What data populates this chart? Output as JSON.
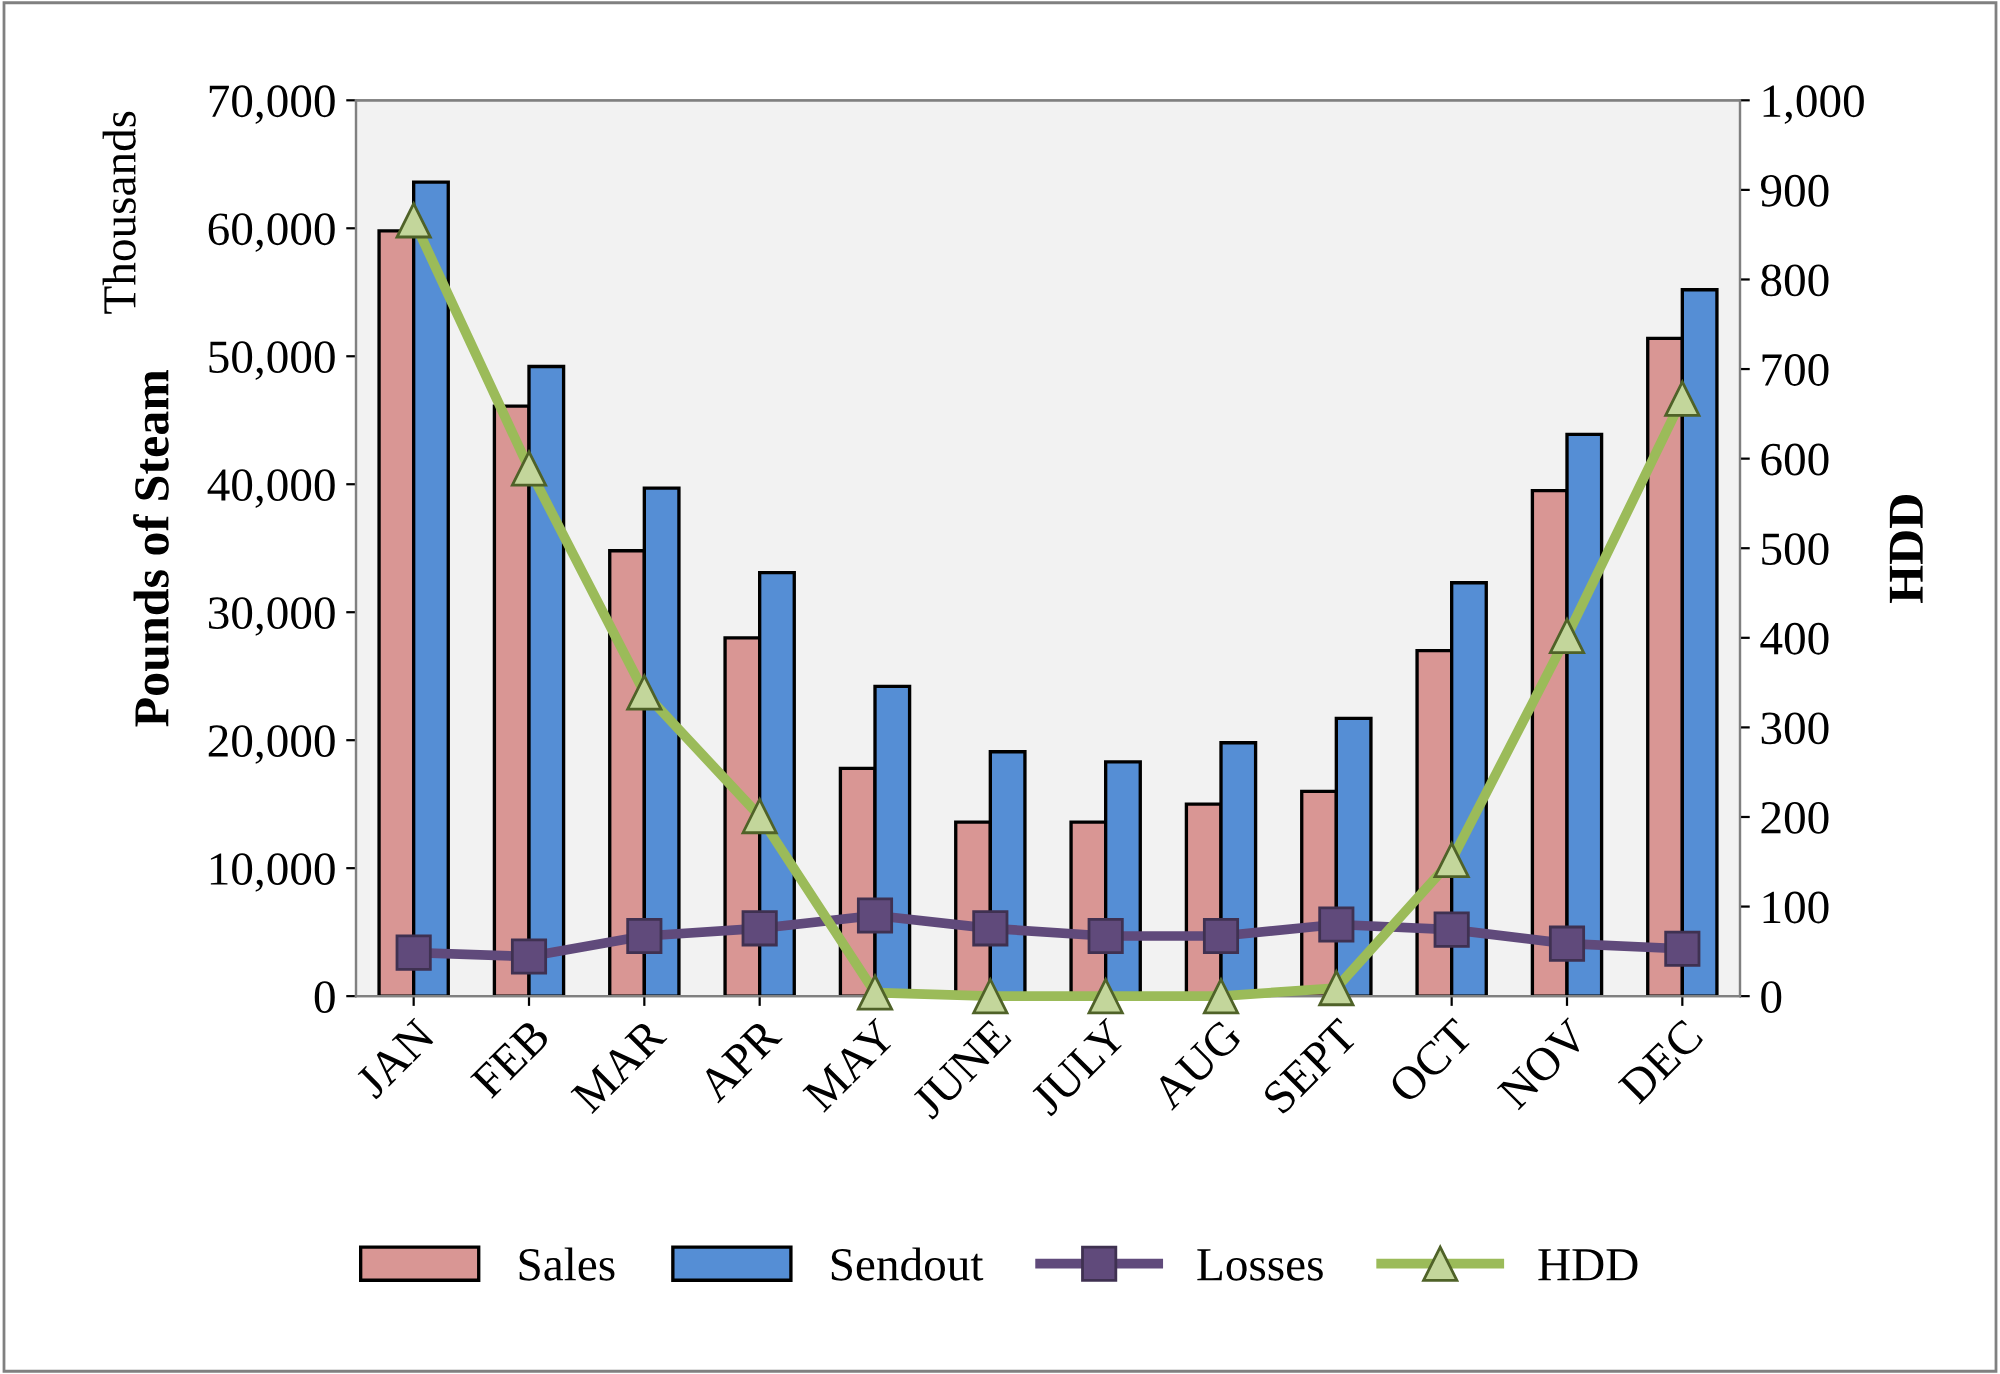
{
  "chart_data": {
    "type": "bar",
    "ylabel": "Pounds of Steam",
    "y2label": "HDD",
    "annotations": [
      "Thousands"
    ],
    "categories": [
      "JAN",
      "FEB",
      "MAR",
      "APR",
      "MAY",
      "JUNE",
      "JULY",
      "AUG",
      "SEPT",
      "OCT",
      "NOV",
      "DEC"
    ],
    "series": [
      {
        "name": "Sales",
        "color": "#d99694",
        "values": [
          59800,
          46100,
          34800,
          28000,
          17800,
          13600,
          13600,
          15000,
          16000,
          27000,
          39500,
          51400
        ]
      },
      {
        "name": "Sendout",
        "color": "#558ed5",
        "values": [
          63600,
          49200,
          39700,
          33100,
          24200,
          19100,
          18300,
          19800,
          21700,
          32300,
          43900,
          55200
        ]
      },
      {
        "name": "Losses",
        "type": "line",
        "marker": "square",
        "color": "#604a7b",
        "values": [
          3400,
          3100,
          4700,
          5300,
          6300,
          5300,
          4700,
          4700,
          5600,
          5200,
          4100,
          3700
        ]
      },
      {
        "name": "HDD",
        "type": "line",
        "marker": "triangle",
        "axis": "y2",
        "color": "#9bbb59",
        "values": [
          866,
          589,
          339,
          201,
          4,
          0,
          0,
          0,
          9,
          152,
          402,
          667
        ]
      }
    ],
    "ylim": [
      0,
      70000
    ],
    "yticks": [
      0,
      {
        "value": 10000,
        "label": "10,000"
      },
      {
        "value": 20000,
        "label": "20,000"
      },
      {
        "value": 30000,
        "label": "30,000"
      },
      {
        "value": 40000,
        "label": "40,000"
      },
      {
        "value": 50000,
        "label": "50,000"
      },
      {
        "value": 60000,
        "label": "60,000"
      },
      {
        "value": 70000,
        "label": "70,000"
      }
    ],
    "y2lim": [
      0,
      1000
    ],
    "y2ticks": [
      0,
      100,
      200,
      300,
      400,
      500,
      600,
      700,
      800,
      900,
      {
        "value": 1000,
        "label": "1,000"
      }
    ],
    "grid": false,
    "legend": "bottom"
  }
}
